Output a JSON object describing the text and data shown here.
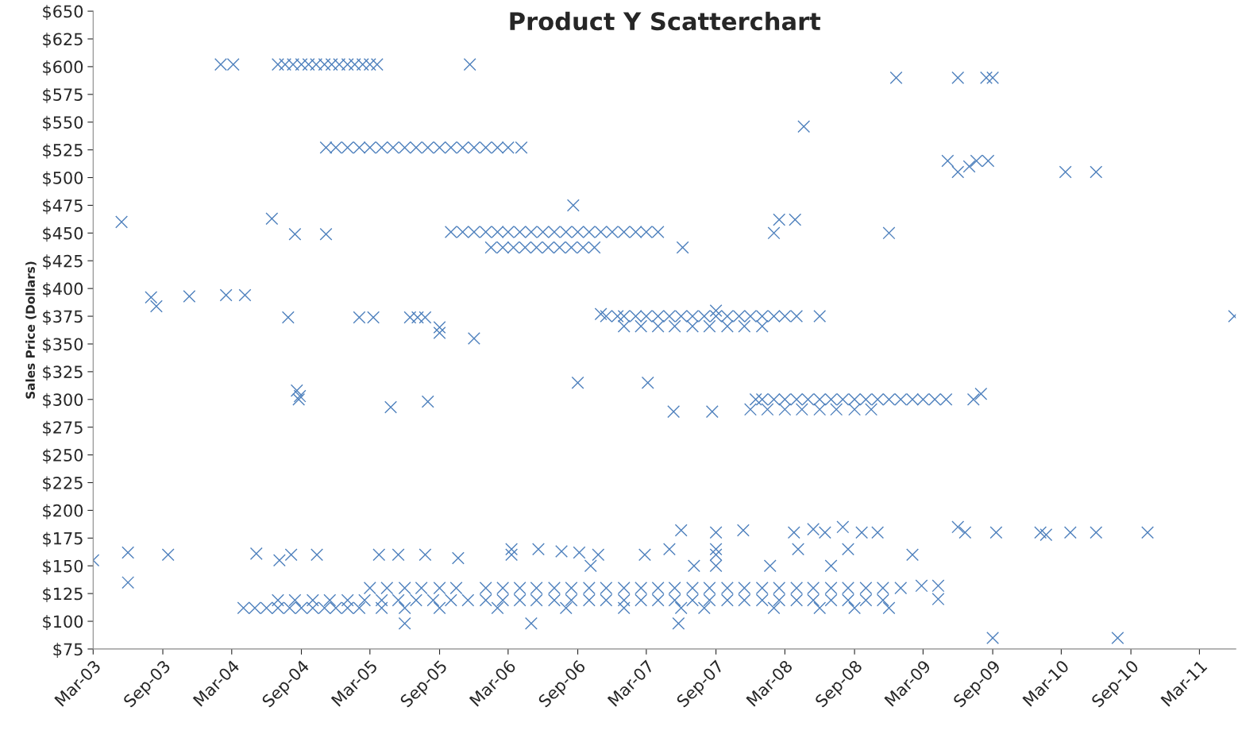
{
  "chart_data": {
    "type": "scatter",
    "title": "Product Y Scatterchart",
    "ylabel": "Sales Price (Dollars)",
    "xlim": [
      "2003-03-01",
      "2011-06-05"
    ],
    "xticks": [
      {
        "value": "2003-03-01",
        "label": "Mar-03"
      },
      {
        "value": "2003-09-01",
        "label": "Sep-03"
      },
      {
        "value": "2004-03-01",
        "label": "Mar-04"
      },
      {
        "value": "2004-09-01",
        "label": "Sep-04"
      },
      {
        "value": "2005-03-01",
        "label": "Mar-05"
      },
      {
        "value": "2005-09-01",
        "label": "Sep-05"
      },
      {
        "value": "2006-03-01",
        "label": "Mar-06"
      },
      {
        "value": "2006-09-01",
        "label": "Sep-06"
      },
      {
        "value": "2007-03-01",
        "label": "Mar-07"
      },
      {
        "value": "2007-09-01",
        "label": "Sep-07"
      },
      {
        "value": "2008-03-01",
        "label": "Mar-08"
      },
      {
        "value": "2008-09-01",
        "label": "Sep-08"
      },
      {
        "value": "2009-03-01",
        "label": "Mar-09"
      },
      {
        "value": "2009-09-01",
        "label": "Sep-09"
      },
      {
        "value": "2010-03-01",
        "label": "Mar-10"
      },
      {
        "value": "2010-09-01",
        "label": "Sep-10"
      },
      {
        "value": "2011-03-01",
        "label": "Mar-11"
      }
    ],
    "ylim": [
      75,
      650
    ],
    "yticks": [
      {
        "value": 75,
        "label": "$75"
      },
      {
        "value": 100,
        "label": "$100"
      },
      {
        "value": 125,
        "label": "$125"
      },
      {
        "value": 150,
        "label": "$150"
      },
      {
        "value": 175,
        "label": "$175"
      },
      {
        "value": 200,
        "label": "$200"
      },
      {
        "value": 225,
        "label": "$225"
      },
      {
        "value": 250,
        "label": "$250"
      },
      {
        "value": 275,
        "label": "$275"
      },
      {
        "value": 300,
        "label": "$300"
      },
      {
        "value": 325,
        "label": "$325"
      },
      {
        "value": 350,
        "label": "$350"
      },
      {
        "value": 375,
        "label": "$375"
      },
      {
        "value": 400,
        "label": "$400"
      },
      {
        "value": 425,
        "label": "$425"
      },
      {
        "value": 450,
        "label": "$450"
      },
      {
        "value": 475,
        "label": "$475"
      },
      {
        "value": 500,
        "label": "$500"
      },
      {
        "value": 525,
        "label": "$525"
      },
      {
        "value": 550,
        "label": "$550"
      },
      {
        "value": 575,
        "label": "$575"
      },
      {
        "value": 600,
        "label": "$600"
      },
      {
        "value": 625,
        "label": "$625"
      },
      {
        "value": 650,
        "label": "$650"
      }
    ],
    "grid": false,
    "marker": "cross",
    "legend": false,
    "series": [
      {
        "color": "#4f81bd",
        "x": [
          "2004-02-01",
          "2004-03-05",
          "2004-07-01",
          "2004-07-20",
          "2004-08-10",
          "2004-09-01",
          "2004-09-20",
          "2004-10-10",
          "2004-11-01",
          "2004-11-20",
          "2004-12-10",
          "2005-01-01",
          "2005-01-20",
          "2005-02-10",
          "2005-03-01",
          "2005-03-20",
          "2005-11-20",
          "2004-11-05",
          "2004-12-01",
          "2005-01-01",
          "2005-02-01",
          "2005-03-01",
          "2005-04-01",
          "2005-05-01",
          "2005-06-01",
          "2005-07-01",
          "2005-08-01",
          "2005-09-01",
          "2005-10-01",
          "2005-11-01",
          "2005-12-01",
          "2006-01-01",
          "2006-02-01",
          "2006-03-01",
          "2006-04-05",
          "2005-10-01",
          "2005-11-01",
          "2005-12-01",
          "2006-01-01",
          "2006-02-01",
          "2006-03-01",
          "2006-04-01",
          "2006-05-01",
          "2006-06-01",
          "2006-07-01",
          "2006-08-01",
          "2006-09-01",
          "2006-10-01",
          "2006-11-01",
          "2006-12-01",
          "2007-01-01",
          "2007-02-01",
          "2007-03-01",
          "2007-04-01",
          "2006-01-15",
          "2006-02-15",
          "2006-03-15",
          "2006-04-15",
          "2006-05-15",
          "2006-06-15",
          "2006-07-15",
          "2006-08-15",
          "2006-09-15",
          "2006-10-15",
          "2006-11-15",
          "2006-12-15",
          "2007-01-01",
          "2007-02-01",
          "2007-03-01",
          "2007-04-01",
          "2007-05-01",
          "2007-06-01",
          "2007-07-01",
          "2007-08-01",
          "2007-09-01",
          "2007-10-01",
          "2007-11-01",
          "2007-12-01",
          "2008-01-01",
          "2008-02-01",
          "2008-03-01",
          "2008-04-01",
          "2007-01-01",
          "2007-02-15",
          "2007-04-01",
          "2007-05-15",
          "2007-07-01",
          "2007-08-15",
          "2007-10-01",
          "2007-11-15",
          "2008-01-01",
          "2007-12-15",
          "2008-01-01",
          "2008-02-01",
          "2008-03-01",
          "2008-04-01",
          "2008-05-01",
          "2008-06-01",
          "2008-07-01",
          "2008-08-01",
          "2008-09-01",
          "2008-10-01",
          "2008-11-01",
          "2008-12-01",
          "2009-01-01",
          "2009-02-01",
          "2009-03-01",
          "2009-04-01",
          "2009-05-01",
          "2007-12-01",
          "2008-01-15",
          "2008-03-01",
          "2008-04-15",
          "2008-06-01",
          "2008-07-15",
          "2008-09-01",
          "2008-10-15",
          "2004-04-01",
          "2004-05-01",
          "2004-06-01",
          "2004-07-01",
          "2004-08-01",
          "2004-09-01",
          "2004-10-01",
          "2004-11-01",
          "2004-12-01",
          "2005-01-01",
          "2005-02-01",
          "2005-04-01",
          "2005-06-01",
          "2005-09-01",
          "2006-02-01",
          "2006-08-01",
          "2007-01-01",
          "2007-06-01",
          "2007-08-01",
          "2008-02-01",
          "2008-06-01",
          "2008-09-01",
          "2008-12-01",
          "2004-07-01",
          "2004-08-15",
          "2004-10-01",
          "2004-11-15",
          "2005-01-01",
          "2005-02-15",
          "2005-04-01",
          "2005-05-15",
          "2005-07-01",
          "2005-08-15",
          "2005-10-01",
          "2005-11-15",
          "2006-01-01",
          "2006-02-15",
          "2006-04-01",
          "2006-05-15",
          "2006-07-01",
          "2006-08-15",
          "2006-10-01",
          "2006-11-15",
          "2007-01-01",
          "2007-02-15",
          "2007-04-01",
          "2007-05-15",
          "2007-07-01",
          "2007-08-15",
          "2007-10-01",
          "2007-11-15",
          "2008-01-01",
          "2008-02-15",
          "2008-04-01",
          "2008-05-15",
          "2008-07-01",
          "2008-08-15",
          "2008-10-01",
          "2008-11-15",
          "2005-03-01",
          "2005-04-15",
          "2005-06-01",
          "2005-07-15",
          "2005-09-01",
          "2005-10-15",
          "2006-01-01",
          "2006-02-15",
          "2006-04-01",
          "2006-05-15",
          "2006-07-01",
          "2006-08-15",
          "2006-10-01",
          "2006-11-15",
          "2007-01-01",
          "2007-02-15",
          "2007-04-01",
          "2007-05-15",
          "2007-07-01",
          "2007-08-15",
          "2007-10-01",
          "2007-11-15",
          "2008-01-01",
          "2008-02-15",
          "2008-04-01",
          "2008-05-15",
          "2008-07-01",
          "2008-08-15",
          "2008-10-01",
          "2008-11-15",
          "2009-01-01",
          "2003-03-01",
          "2003-05-15",
          "2003-06-01",
          "2003-06-01",
          "2003-08-01",
          "2003-08-15",
          "2003-09-15",
          "2003-11-10",
          "2004-02-15",
          "2004-04-05",
          "2004-05-05",
          "2004-06-15",
          "2004-07-05",
          "2004-07-28",
          "2004-08-05",
          "2004-08-15",
          "2004-08-20",
          "2004-08-25",
          "2004-08-28",
          "2004-10-12",
          "2004-11-05",
          "2005-02-01",
          "2005-03-10",
          "2005-03-25",
          "2005-04-25",
          "2005-05-15",
          "2005-06-01",
          "2005-06-15",
          "2005-07-05",
          "2005-07-25",
          "2005-07-25",
          "2005-08-01",
          "2005-09-01",
          "2005-09-01",
          "2005-10-20",
          "2005-12-01",
          "2006-03-10",
          "2006-03-10",
          "2006-05-01",
          "2006-05-20",
          "2006-07-20",
          "2006-08-20",
          "2006-09-01",
          "2006-09-05",
          "2006-10-05",
          "2006-10-25",
          "2006-11-01",
          "2007-02-25",
          "2007-03-05",
          "2007-05-01",
          "2007-05-12",
          "2007-05-25",
          "2007-06-01",
          "2007-06-05",
          "2007-07-05",
          "2007-08-22",
          "2007-09-01",
          "2007-09-01",
          "2007-09-01",
          "2007-09-01",
          "2007-09-01",
          "2007-11-12",
          "2008-01-22",
          "2008-02-01",
          "2008-02-15",
          "2008-03-25",
          "2008-04-05",
          "2008-03-28",
          "2008-04-20",
          "2008-06-01",
          "2008-05-15",
          "2008-06-15",
          "2008-07-01",
          "2008-08-01",
          "2008-08-15",
          "2008-09-20",
          "2008-11-01",
          "2008-12-01",
          "2008-12-20",
          "2009-02-01",
          "2009-02-25",
          "2009-04-10",
          "2009-04-10",
          "2009-05-05",
          "2009-06-01",
          "2009-06-01",
          "2009-06-01",
          "2009-06-20",
          "2009-07-01",
          "2009-07-12",
          "2009-07-20",
          "2009-08-01",
          "2009-08-15",
          "2009-08-20",
          "2009-09-01",
          "2009-09-01",
          "2009-09-10",
          "2010-01-05",
          "2010-01-20",
          "2010-03-12",
          "2010-03-25",
          "2010-06-01",
          "2010-06-01",
          "2010-07-28",
          "2010-10-15",
          "2011-06-01"
        ],
        "values": [
          602,
          602,
          602,
          602,
          602,
          602,
          602,
          602,
          602,
          602,
          602,
          602,
          602,
          602,
          602,
          602,
          602,
          527,
          527,
          527,
          527,
          527,
          527,
          527,
          527,
          527,
          527,
          527,
          527,
          527,
          527,
          527,
          527,
          527,
          527,
          451,
          451,
          451,
          451,
          451,
          451,
          451,
          451,
          451,
          451,
          451,
          451,
          451,
          451,
          451,
          451,
          451,
          451,
          451,
          437,
          437,
          437,
          437,
          437,
          437,
          437,
          437,
          437,
          437,
          375,
          375,
          375,
          375,
          375,
          375,
          375,
          375,
          375,
          375,
          375,
          375,
          375,
          375,
          375,
          375,
          375,
          375,
          366,
          366,
          366,
          366,
          366,
          366,
          366,
          366,
          366,
          300,
          300,
          300,
          300,
          300,
          300,
          300,
          300,
          300,
          300,
          300,
          300,
          300,
          300,
          300,
          300,
          300,
          300,
          291,
          291,
          291,
          291,
          291,
          291,
          291,
          291,
          112,
          112,
          112,
          112,
          112,
          112,
          112,
          112,
          112,
          112,
          112,
          112,
          112,
          112,
          112,
          112,
          112,
          112,
          112,
          112,
          112,
          112,
          112,
          119,
          119,
          119,
          119,
          119,
          119,
          119,
          119,
          119,
          119,
          119,
          119,
          119,
          119,
          119,
          119,
          119,
          119,
          119,
          119,
          119,
          119,
          119,
          119,
          119,
          119,
          119,
          119,
          119,
          119,
          119,
          119,
          119,
          119,
          119,
          119,
          130,
          130,
          130,
          130,
          130,
          130,
          130,
          130,
          130,
          130,
          130,
          130,
          130,
          130,
          130,
          130,
          130,
          130,
          130,
          130,
          130,
          130,
          130,
          130,
          130,
          130,
          130,
          130,
          130,
          130,
          130,
          155,
          460,
          162,
          135,
          392,
          384,
          160,
          393,
          394,
          394,
          161,
          463,
          155,
          374,
          160,
          449,
          308,
          300,
          303,
          160,
          449,
          374,
          374,
          160,
          293,
          160,
          98,
          374,
          374,
          374,
          160,
          298,
          360,
          365,
          157,
          355,
          160,
          165,
          98,
          165,
          163,
          475,
          315,
          162,
          150,
          160,
          377,
          160,
          315,
          165,
          289,
          98,
          182,
          437,
          150,
          289,
          160,
          165,
          150,
          180,
          380,
          182,
          150,
          450,
          462,
          180,
          165,
          462,
          546,
          375,
          183,
          180,
          150,
          185,
          165,
          180,
          180,
          450,
          590,
          160,
          132,
          132,
          120,
          515,
          590,
          505,
          185,
          180,
          510,
          300,
          515,
          305,
          590,
          515,
          85,
          590,
          180,
          180,
          178,
          505,
          180,
          505,
          180,
          85,
          180,
          375
        ]
      }
    ]
  }
}
